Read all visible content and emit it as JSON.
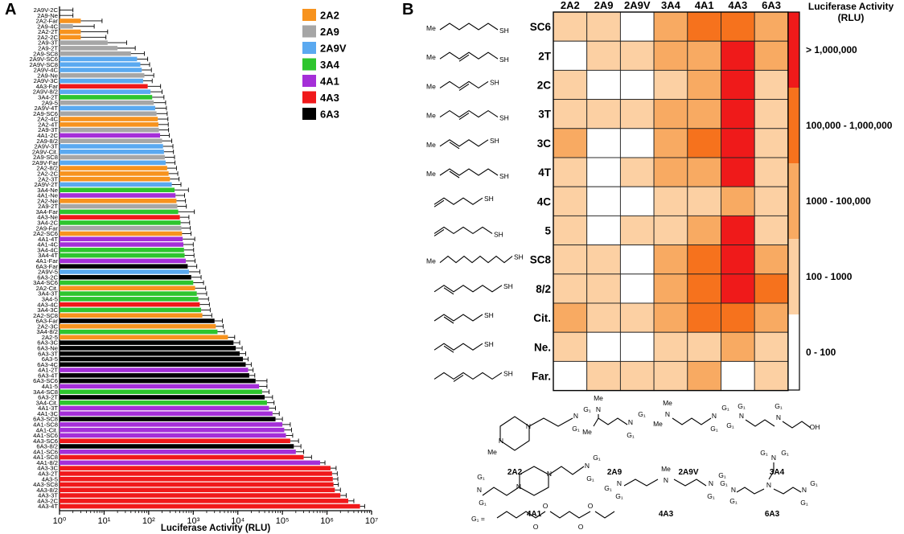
{
  "panels": {
    "a": "A",
    "b": "B"
  },
  "colors": {
    "2A2": "#f7931e",
    "2A9": "#a6a6a6",
    "2A9V": "#5aa9f0",
    "3A4": "#2ec52e",
    "4A1": "#a52fd8",
    "4A3": "#f0191b",
    "6A3": "#000000"
  },
  "chart_data": [
    {
      "type": "bar",
      "orientation": "horizontal",
      "xlabel": "Luciferase Activity (RLU)",
      "xscale": "log",
      "xlim": [
        1,
        10000000
      ],
      "x_ticks": [
        "10⁰",
        "10¹",
        "10²",
        "10³",
        "10⁴",
        "10⁵",
        "10⁶",
        "10⁷"
      ],
      "legend": {
        "placement": "top-right",
        "entries": [
          "2A2",
          "2A9",
          "2A9V",
          "3A4",
          "4A1",
          "4A3",
          "6A3"
        ]
      },
      "bars": [
        {
          "label": "2A9V-2C",
          "group": "2A9V",
          "value": 1,
          "err": 1
        },
        {
          "label": "2A9-Ne",
          "group": "2A9",
          "value": 1,
          "err": 1
        },
        {
          "label": "2A2-Far",
          "group": "2A2",
          "value": 3,
          "err": 6
        },
        {
          "label": "2A9-4C",
          "group": "2A9",
          "value": 2,
          "err": 4
        },
        {
          "label": "2A2-2T",
          "group": "2A2",
          "value": 3,
          "err": 9
        },
        {
          "label": "2A2-2C",
          "group": "2A2",
          "value": 3,
          "err": 8
        },
        {
          "label": "2A9-3T",
          "group": "2A9",
          "value": 12,
          "err": 20
        },
        {
          "label": "2A9-2T",
          "group": "2A9",
          "value": 20,
          "err": 30
        },
        {
          "label": "2A9-SC8",
          "group": "2A9",
          "value": 40,
          "err": 40
        },
        {
          "label": "2A9V-SC6",
          "group": "2A9V",
          "value": 55,
          "err": 40
        },
        {
          "label": "2A9V-SC8",
          "group": "2A9V",
          "value": 65,
          "err": 40
        },
        {
          "label": "2A9V-4C",
          "group": "2A9V",
          "value": 70,
          "err": 45
        },
        {
          "label": "2A9-Ne",
          "group": "2A9",
          "value": 80,
          "err": 50
        },
        {
          "label": "2A9V-3C",
          "group": "2A9V",
          "value": 75,
          "err": 45
        },
        {
          "label": "4A3-Far",
          "group": "4A3",
          "value": 95,
          "err": 90
        },
        {
          "label": "2A9V-8/2",
          "group": "2A9V",
          "value": 110,
          "err": 90
        },
        {
          "label": "3A4-2T",
          "group": "3A4",
          "value": 120,
          "err": 100
        },
        {
          "label": "2A9-5",
          "group": "2A9",
          "value": 130,
          "err": 110
        },
        {
          "label": "2A9V-4T",
          "group": "2A9V",
          "value": 140,
          "err": 110
        },
        {
          "label": "2A9-SC6",
          "group": "2A9",
          "value": 150,
          "err": 110
        },
        {
          "label": "2A2-4C",
          "group": "2A2",
          "value": 160,
          "err": 110
        },
        {
          "label": "2A2-4T",
          "group": "2A2",
          "value": 165,
          "err": 110
        },
        {
          "label": "2A9-3T",
          "group": "2A9",
          "value": 170,
          "err": 110
        },
        {
          "label": "4A1-2C",
          "group": "4A1",
          "value": 180,
          "err": 110
        },
        {
          "label": "2A9-8/2",
          "group": "2A9",
          "value": 200,
          "err": 130
        },
        {
          "label": "2A9V-3T",
          "group": "2A9V",
          "value": 210,
          "err": 140
        },
        {
          "label": "2A9V-Cit.",
          "group": "2A9V",
          "value": 220,
          "err": 140
        },
        {
          "label": "2A9-SC8",
          "group": "2A9",
          "value": 230,
          "err": 150
        },
        {
          "label": "2A9V-Far",
          "group": "2A9V",
          "value": 240,
          "err": 150
        },
        {
          "label": "2A2-8/2",
          "group": "2A2",
          "value": 260,
          "err": 160
        },
        {
          "label": "2A2-2C",
          "group": "2A2",
          "value": 280,
          "err": 170
        },
        {
          "label": "2A2-3T",
          "group": "2A2",
          "value": 300,
          "err": 180
        },
        {
          "label": "2A9V-2T",
          "group": "2A9V",
          "value": 330,
          "err": 200
        },
        {
          "label": "3A4-Ne",
          "group": "3A4",
          "value": 380,
          "err": 400
        },
        {
          "label": "4A1-Ne",
          "group": "4A1",
          "value": 400,
          "err": 240
        },
        {
          "label": "2A2-Ne",
          "group": "2A2",
          "value": 420,
          "err": 250
        },
        {
          "label": "2A9-2T",
          "group": "2A9",
          "value": 440,
          "err": 260
        },
        {
          "label": "3A4-Far",
          "group": "3A4",
          "value": 460,
          "err": 600
        },
        {
          "label": "4A3-Ne",
          "group": "4A3",
          "value": 500,
          "err": 300
        },
        {
          "label": "3A4-2C",
          "group": "3A4",
          "value": 520,
          "err": 310
        },
        {
          "label": "2A9-Far",
          "group": "2A9",
          "value": 540,
          "err": 320
        },
        {
          "label": "2A2-SC6",
          "group": "2A2",
          "value": 560,
          "err": 330
        },
        {
          "label": "4A1-4T",
          "group": "4A1",
          "value": 580,
          "err": 500
        },
        {
          "label": "4A1-4C",
          "group": "4A1",
          "value": 600,
          "err": 400
        },
        {
          "label": "3A4-4C",
          "group": "3A4",
          "value": 620,
          "err": 400
        },
        {
          "label": "3A4-4T",
          "group": "3A4",
          "value": 640,
          "err": 400
        },
        {
          "label": "4A1-Far",
          "group": "4A1",
          "value": 680,
          "err": 420
        },
        {
          "label": "6A3-Far",
          "group": "6A3",
          "value": 750,
          "err": 450
        },
        {
          "label": "2A9V-5",
          "group": "2A9V",
          "value": 800,
          "err": 600
        },
        {
          "label": "6A3-2C",
          "group": "6A3",
          "value": 900,
          "err": 600
        },
        {
          "label": "3A4-SC6",
          "group": "3A4",
          "value": 1000,
          "err": 700
        },
        {
          "label": "2A2-Cit.",
          "group": "2A2",
          "value": 1100,
          "err": 800
        },
        {
          "label": "3A4-3T",
          "group": "3A4",
          "value": 1200,
          "err": 800
        },
        {
          "label": "3A4-5",
          "group": "3A4",
          "value": 1300,
          "err": 900
        },
        {
          "label": "4A3-4C",
          "group": "4A3",
          "value": 1400,
          "err": 900
        },
        {
          "label": "3A4-3C",
          "group": "3A4",
          "value": 1500,
          "err": 900
        },
        {
          "label": "2A2-SC8",
          "group": "2A2",
          "value": 1600,
          "err": 1000
        },
        {
          "label": "6A3-Far",
          "group": "6A3",
          "value": 3000,
          "err": 1500
        },
        {
          "label": "2A2-3C",
          "group": "2A2",
          "value": 3200,
          "err": 1500
        },
        {
          "label": "3A4-8/2",
          "group": "3A4",
          "value": 3500,
          "err": 1500
        },
        {
          "label": "2A2-5",
          "group": "2A2",
          "value": 6000,
          "err": 2500
        },
        {
          "label": "6A3-3C",
          "group": "6A3",
          "value": 8000,
          "err": 3000
        },
        {
          "label": "6A3-Ne",
          "group": "6A3",
          "value": 9000,
          "err": 3500
        },
        {
          "label": "6A3-3T",
          "group": "6A3",
          "value": 11000,
          "err": 4000
        },
        {
          "label": "6A3-5",
          "group": "6A3",
          "value": 13000,
          "err": 4000
        },
        {
          "label": "6A3-4C",
          "group": "6A3",
          "value": 15000,
          "err": 5000
        },
        {
          "label": "4A1-2T",
          "group": "4A1",
          "value": 17000,
          "err": 5000
        },
        {
          "label": "6A3-4T",
          "group": "6A3",
          "value": 18000,
          "err": 6000
        },
        {
          "label": "6A3-SC6",
          "group": "6A3",
          "value": 25000,
          "err": 20000
        },
        {
          "label": "4A1-5",
          "group": "4A1",
          "value": 30000,
          "err": 15000
        },
        {
          "label": "3A4-SC8",
          "group": "3A4",
          "value": 35000,
          "err": 15000
        },
        {
          "label": "6A3-2T",
          "group": "6A3",
          "value": 40000,
          "err": 20000
        },
        {
          "label": "3A4-Cit.",
          "group": "3A4",
          "value": 45000,
          "err": 20000
        },
        {
          "label": "4A1-3T",
          "group": "4A1",
          "value": 50000,
          "err": 20000
        },
        {
          "label": "4A1-3C",
          "group": "4A1",
          "value": 60000,
          "err": 25000
        },
        {
          "label": "6A3-SC8",
          "group": "6A3",
          "value": 70000,
          "err": 30000
        },
        {
          "label": "4A1-SC8",
          "group": "4A1",
          "value": 100000,
          "err": 50000
        },
        {
          "label": "4A1-Cit.",
          "group": "4A1",
          "value": 110000,
          "err": 50000
        },
        {
          "label": "4A1-SC6",
          "group": "4A1",
          "value": 120000,
          "err": 50000
        },
        {
          "label": "4A3-SC6",
          "group": "4A3",
          "value": 150000,
          "err": 80000
        },
        {
          "label": "6A3-8/2",
          "group": "6A3",
          "value": 180000,
          "err": 80000
        },
        {
          "label": "4A1-SC6",
          "group": "4A1",
          "value": 200000,
          "err": 100000
        },
        {
          "label": "4A1-SC8",
          "group": "4A3",
          "value": 300000,
          "err": 150000
        },
        {
          "label": "4A1-8/2",
          "group": "4A1",
          "value": 700000,
          "err": 200000
        },
        {
          "label": "4A3-3C",
          "group": "4A3",
          "value": 1200000,
          "err": 400000
        },
        {
          "label": "4A3-2T",
          "group": "4A3",
          "value": 1300000,
          "err": 400000
        },
        {
          "label": "4A3-5",
          "group": "4A3",
          "value": 1350000,
          "err": 400000
        },
        {
          "label": "4A3-SC8",
          "group": "4A3",
          "value": 1400000,
          "err": 400000
        },
        {
          "label": "4A3-8/2",
          "group": "4A3",
          "value": 1500000,
          "err": 500000
        },
        {
          "label": "4A3-3T",
          "group": "4A3",
          "value": 2000000,
          "err": 700000
        },
        {
          "label": "4A3-2C",
          "group": "4A3",
          "value": 3000000,
          "err": 1000000
        },
        {
          "label": "4A3-4T",
          "group": "4A3",
          "value": 5500000,
          "err": 1500000
        }
      ]
    },
    {
      "type": "heatmap",
      "columns": [
        "2A2",
        "2A9",
        "2A9V",
        "3A4",
        "4A1",
        "4A3",
        "6A3"
      ],
      "rows": [
        "SC6",
        "2T",
        "2C",
        "3T",
        "3C",
        "4T",
        "4C",
        "5",
        "SC8",
        "8/2",
        "Cit.",
        "Ne.",
        "Far."
      ],
      "levels": [
        "0 - 100",
        "100 - 1000",
        "1000 - 100,000",
        "100,000 - 1,000,000",
        "> 1,000,000"
      ],
      "level_colors": [
        "#ffffff",
        "#fcd0a3",
        "#f8aa62",
        "#f6721d",
        "#ef1a1a"
      ],
      "values": [
        [
          1,
          1,
          0,
          2,
          3,
          3,
          2
        ],
        [
          0,
          1,
          1,
          2,
          2,
          4,
          2
        ],
        [
          1,
          0,
          0,
          1,
          2,
          4,
          1
        ],
        [
          1,
          1,
          1,
          2,
          2,
          4,
          1
        ],
        [
          2,
          0,
          0,
          2,
          3,
          4,
          1
        ],
        [
          1,
          0,
          1,
          2,
          2,
          4,
          1
        ],
        [
          1,
          0,
          0,
          1,
          1,
          2,
          1
        ],
        [
          1,
          0,
          1,
          1,
          2,
          4,
          1
        ],
        [
          1,
          1,
          0,
          2,
          3,
          4,
          2
        ],
        [
          1,
          1,
          0,
          2,
          3,
          4,
          3
        ],
        [
          2,
          1,
          1,
          2,
          3,
          3,
          2
        ],
        [
          1,
          0,
          0,
          1,
          1,
          2,
          1
        ],
        [
          0,
          1,
          1,
          1,
          2,
          0,
          1
        ]
      ],
      "scale_title": [
        "Luciferase Activity",
        "(RLU)"
      ]
    }
  ],
  "structures": {
    "thiol_labels": {
      "me": "Me",
      "sh": "SH"
    },
    "amines": [
      "2A2",
      "2A9",
      "2A9V",
      "3A4",
      "4A1",
      "4A3",
      "6A3"
    ],
    "atoms": {
      "n": "N",
      "me": "Me",
      "g1": "G₁",
      "oh": "OH",
      "o": "O"
    },
    "g1_def": "G₁ ="
  }
}
